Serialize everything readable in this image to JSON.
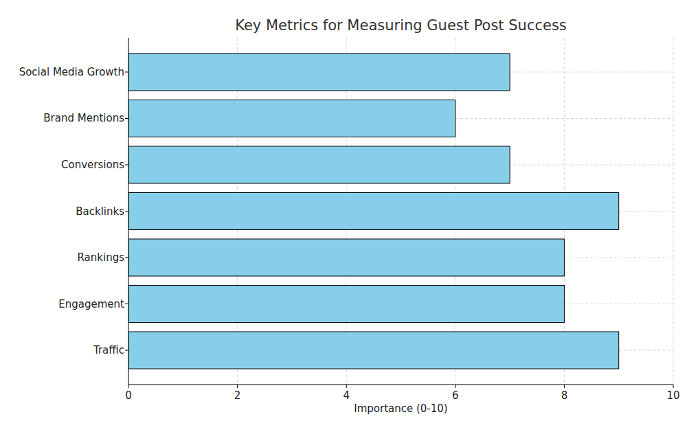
{
  "chart_data": {
    "type": "bar",
    "orientation": "horizontal",
    "title": "Key Metrics for Measuring Guest Post Success",
    "x_label": "Importance (0-10)",
    "categories": [
      "Traffic",
      "Engagement",
      "Rankings",
      "Backlinks",
      "Conversions",
      "Brand Mentions",
      "Social Media Growth"
    ],
    "values": [
      9,
      8,
      8,
      9,
      7,
      6,
      7
    ],
    "color": "#87ceeb",
    "xlim": [
      0,
      10
    ],
    "xticks": [
      0,
      2,
      4,
      6,
      8,
      10
    ],
    "grid": true
  }
}
